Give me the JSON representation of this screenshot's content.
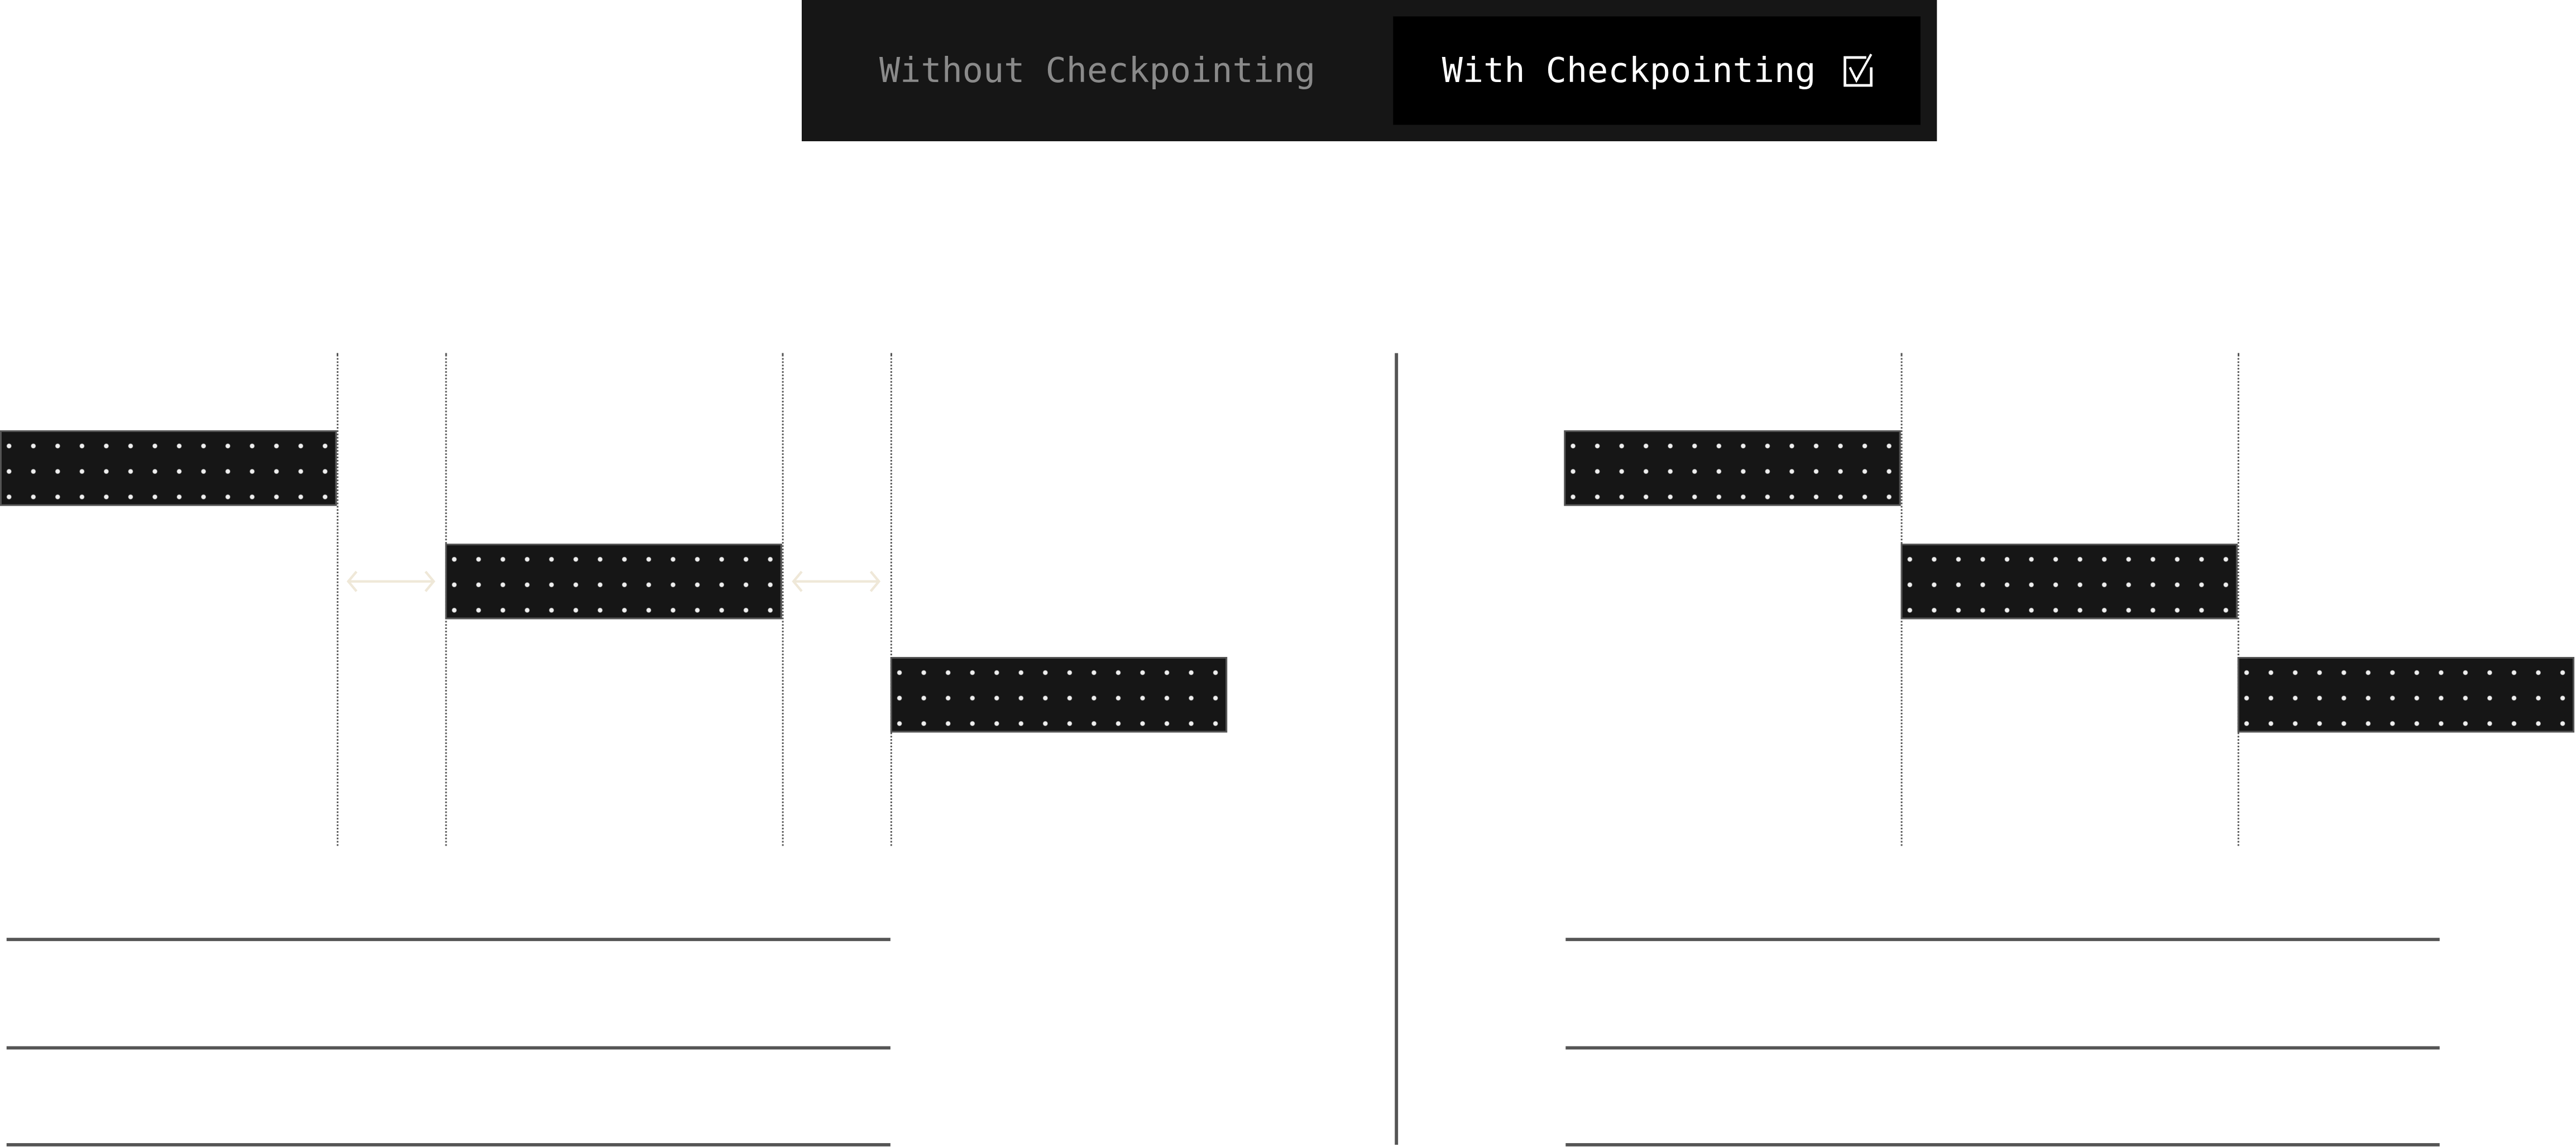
{
  "toggle": {
    "options": [
      {
        "label": "Without Checkpointing",
        "selected": false
      },
      {
        "label": "With Checkpointing",
        "selected": true,
        "icon": "checkbox-checked-icon"
      }
    ]
  },
  "colors": {
    "toggle_bg": "#161616",
    "selected_bg": "#000000",
    "block": "#161616",
    "gap_arrow": "#efe8d8",
    "lines": "#555555"
  }
}
